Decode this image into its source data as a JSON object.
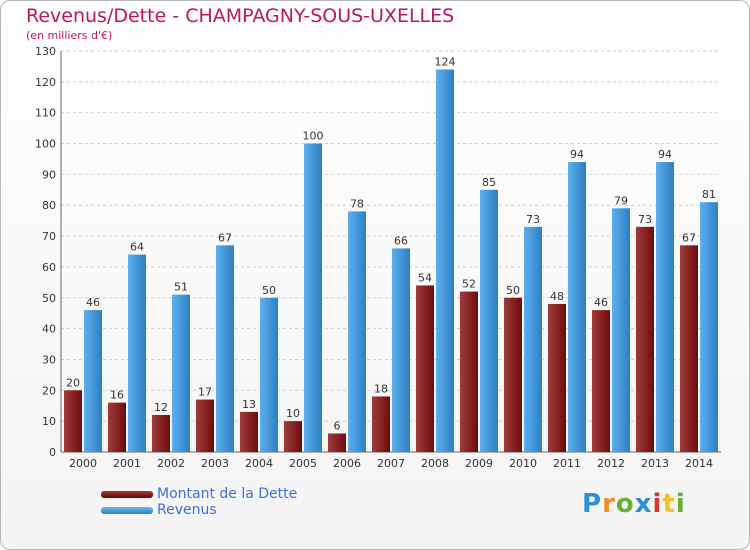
{
  "chart_data": {
    "type": "bar",
    "title": "Revenus/Dette - CHAMPAGNY-SOUS-UXELLES",
    "subtitle": "(en milliers d'€)",
    "xlabel": "",
    "ylabel": "",
    "ylim": [
      0,
      130
    ],
    "yticks": [
      0,
      10,
      20,
      30,
      40,
      50,
      60,
      70,
      80,
      90,
      100,
      110,
      120,
      130
    ],
    "grid": true,
    "legend_position": "bottom-left",
    "categories": [
      "2000",
      "2001",
      "2002",
      "2003",
      "2004",
      "2005",
      "2006",
      "2007",
      "2008",
      "2009",
      "2010",
      "2011",
      "2012",
      "2013",
      "2014"
    ],
    "series": [
      {
        "name": "Montant de la Dette",
        "color": "#8b1a1a",
        "values": [
          20,
          16,
          12,
          17,
          13,
          10,
          6,
          18,
          54,
          52,
          50,
          48,
          46,
          73,
          67
        ]
      },
      {
        "name": "Revenus",
        "color": "#3d95d9",
        "values": [
          46,
          64,
          51,
          67,
          50,
          100,
          78,
          66,
          124,
          85,
          73,
          94,
          79,
          94,
          81
        ]
      }
    ]
  },
  "logo": {
    "letters": [
      "P",
      "r",
      "o",
      "x",
      "i",
      "t",
      "i"
    ],
    "colors": [
      "#2a8fd6",
      "#f28c28",
      "#66b032",
      "#2a8fd6",
      "#d9362b",
      "#f2c228",
      "#66b032"
    ]
  }
}
